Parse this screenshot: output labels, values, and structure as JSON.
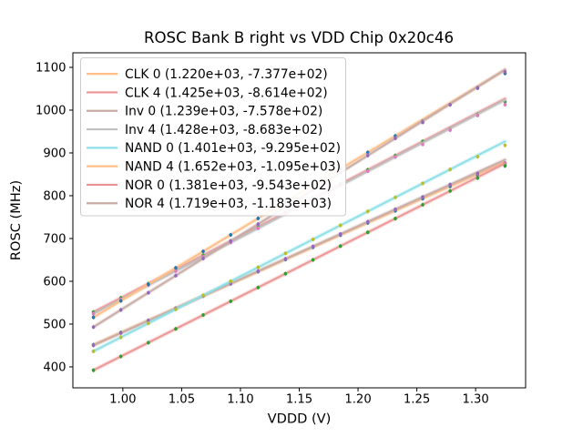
{
  "figure": {
    "background": "#ffffff",
    "spine_color": "#000000",
    "text_color": "#000000"
  },
  "chart_data": {
    "type": "line",
    "title": "ROSC Bank B right vs VDD Chip 0x20c46",
    "xlabel": "VDDD (V)",
    "ylabel": "ROSC (MHz)",
    "xlim": [
      0.9575,
      1.3425
    ],
    "ylim": [
      351,
      1134
    ],
    "grid": false,
    "legend_position": "upper left",
    "xticks": [
      1.0,
      1.05,
      1.1,
      1.15,
      1.2,
      1.25,
      1.3
    ],
    "xticklabels": [
      "1.00",
      "1.05",
      "1.10",
      "1.15",
      "1.20",
      "1.25",
      "1.30"
    ],
    "yticks": [
      400,
      500,
      600,
      700,
      800,
      900,
      1000,
      1100
    ],
    "yticklabels": [
      "400",
      "500",
      "600",
      "700",
      "800",
      "900",
      "1000",
      "1100"
    ],
    "x": [
      0.975,
      0.9983,
      1.0217,
      1.045,
      1.0683,
      1.0917,
      1.115,
      1.1383,
      1.1617,
      1.185,
      1.2083,
      1.2317,
      1.255,
      1.2783,
      1.3017,
      1.325
    ],
    "error_bar_half_height": 4.5,
    "fit_x_range": [
      0.975,
      1.325
    ],
    "series": [
      {
        "name": "CLK 0",
        "legend_label": "CLK 0 (1.220e+03, -7.377e+02)",
        "slope": 1220.0,
        "intercept": -737.7,
        "line_color": "#ffbf87",
        "marker_color": "#1f77b4",
        "values": [
          451.8,
          480.3,
          508.7,
          537.2,
          565.7,
          594.1,
          622.6,
          651.1,
          679.5,
          708.0,
          736.5,
          764.9,
          793.4,
          821.9,
          847.3,
          871.8
        ]
      },
      {
        "name": "CLK 4",
        "legend_label": "CLK 4 (1.425e+03, -8.614e+02)",
        "slope": 1425.0,
        "intercept": -861.4,
        "line_color": "#eb9394",
        "marker_color": "#2ca02c",
        "values": [
          528.0,
          561.3,
          594.5,
          627.8,
          661.0,
          694.3,
          727.5,
          760.8,
          794.0,
          827.3,
          860.5,
          893.8,
          927.0,
          956.3,
          990.5,
          1019.7
        ]
      },
      {
        "name": "Inv 0",
        "legend_label": "Inv 0 (1.239e+03, -7.578e+02)",
        "slope": 1239.0,
        "intercept": -757.8,
        "line_color": "#c6aba5",
        "marker_color": "#9467bd",
        "values": [
          450.2,
          479.1,
          508.0,
          536.9,
          565.8,
          594.8,
          623.7,
          652.6,
          681.5,
          710.4,
          739.3,
          768.2,
          797.1,
          826.1,
          852.0,
          875.9
        ]
      },
      {
        "name": "Inv 4",
        "legend_label": "Inv 4 (1.428e+03, -8.683e+02)",
        "slope": 1428.0,
        "intercept": -868.3,
        "line_color": "#bfbfbf",
        "marker_color": "#e377c2",
        "values": [
          524.0,
          557.3,
          590.6,
          624.0,
          657.3,
          690.6,
          723.9,
          757.3,
          790.6,
          823.9,
          857.2,
          890.6,
          919.9,
          953.2,
          987.5,
          1012.8
        ]
      },
      {
        "name": "NAND 0",
        "legend_label": "NAND 0 (1.401e+03, -9.295e+02)",
        "slope": 1401.0,
        "intercept": -929.5,
        "line_color": "#8bdfe7",
        "marker_color": "#bcbd22",
        "values": [
          436.5,
          469.2,
          501.9,
          534.6,
          567.3,
          600.0,
          632.6,
          665.3,
          698.0,
          730.7,
          763.4,
          796.1,
          828.8,
          861.5,
          891.1,
          917.8
        ]
      },
      {
        "name": "NAND 4",
        "legend_label": "NAND 4 (1.652e+03, -1.095e+03)",
        "slope": 1652.0,
        "intercept": -1095.0,
        "line_color": "#ffbf87",
        "marker_color": "#1f77b4",
        "values": [
          515.7,
          554.3,
          592.8,
          631.4,
          669.9,
          708.5,
          747.0,
          785.5,
          824.1,
          862.6,
          901.2,
          939.7,
          974.3,
          1012.8,
          1051.4,
          1085.9
        ]
      },
      {
        "name": "NOR 0",
        "legend_label": "NOR 0 (1.381e+03, -9.543e+02)",
        "slope": 1381.0,
        "intercept": -954.3,
        "line_color": "#eb9394",
        "marker_color": "#2ca02c",
        "values": [
          392.2,
          424.4,
          456.6,
          488.9,
          521.1,
          553.3,
          585.5,
          617.8,
          650.0,
          682.2,
          714.4,
          746.6,
          778.9,
          811.1,
          841.3,
          869.5
        ]
      },
      {
        "name": "NOR 4",
        "legend_label": "NOR 4 (1.719e+03, -1.183e+03)",
        "slope": 1719.0,
        "intercept": -1183.0,
        "line_color": "#c6aba5",
        "marker_color": "#9467bd",
        "values": [
          493.0,
          533.1,
          573.2,
          613.3,
          653.4,
          693.6,
          733.7,
          773.8,
          813.9,
          854.0,
          894.1,
          934.2,
          971.3,
          1012.4,
          1052.5,
          1089.6
        ]
      }
    ]
  }
}
